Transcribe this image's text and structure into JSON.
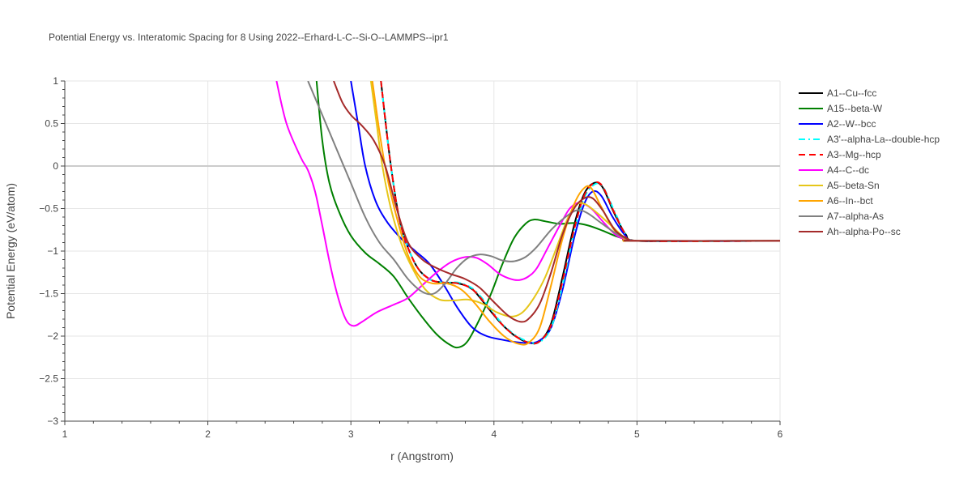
{
  "chart_data": {
    "type": "line",
    "title": "Potential Energy vs. Interatomic Spacing for 8 Using 2022--Erhard-L-C--Si-O--LAMMPS--ipr1",
    "xlabel": "r (Angstrom)",
    "ylabel": "Potential Energy (eV/atom)",
    "xlim": [
      1,
      6
    ],
    "ylim": [
      -3,
      1
    ],
    "x_ticks": [
      1,
      2,
      3,
      4,
      5,
      6
    ],
    "x_tick_labels": [
      "1",
      "2",
      "3",
      "4",
      "5",
      "6"
    ],
    "y_ticks": [
      1,
      0.5,
      0,
      -0.5,
      -1,
      -1.5,
      -2,
      -2.5,
      -3
    ],
    "y_tick_labels": [
      "1",
      "0.5",
      "0",
      "−0.5",
      "−1",
      "−1.5",
      "−2",
      "−2.5",
      "−3"
    ],
    "grid": true,
    "legend_position": "right",
    "series": [
      {
        "name": "A1--Cu--fcc",
        "color": "#000000",
        "dash": "solid",
        "points": [
          [
            3.21,
            1.0
          ],
          [
            3.28,
            0.0
          ],
          [
            3.35,
            -0.7
          ],
          [
            3.45,
            -1.15
          ],
          [
            3.55,
            -1.33
          ],
          [
            3.65,
            -1.37
          ],
          [
            3.75,
            -1.38
          ],
          [
            3.85,
            -1.45
          ],
          [
            3.95,
            -1.65
          ],
          [
            4.05,
            -1.85
          ],
          [
            4.15,
            -2.0
          ],
          [
            4.25,
            -2.08
          ],
          [
            4.32,
            -2.06
          ],
          [
            4.4,
            -1.85
          ],
          [
            4.48,
            -1.3
          ],
          [
            4.56,
            -0.7
          ],
          [
            4.63,
            -0.33
          ],
          [
            4.7,
            -0.2
          ],
          [
            4.76,
            -0.25
          ],
          [
            4.84,
            -0.55
          ],
          [
            4.92,
            -0.8
          ],
          [
            5.0,
            -0.88
          ],
          [
            5.5,
            -0.88
          ],
          [
            6.0,
            -0.88
          ]
        ]
      },
      {
        "name": "A15--beta-W",
        "color": "#008000",
        "dash": "solid",
        "points": [
          [
            2.76,
            1.0
          ],
          [
            2.8,
            0.3
          ],
          [
            2.85,
            -0.2
          ],
          [
            2.92,
            -0.55
          ],
          [
            3.0,
            -0.82
          ],
          [
            3.1,
            -1.02
          ],
          [
            3.2,
            -1.15
          ],
          [
            3.3,
            -1.3
          ],
          [
            3.4,
            -1.55
          ],
          [
            3.5,
            -1.78
          ],
          [
            3.6,
            -1.98
          ],
          [
            3.7,
            -2.11
          ],
          [
            3.76,
            -2.13
          ],
          [
            3.82,
            -2.05
          ],
          [
            3.9,
            -1.8
          ],
          [
            3.98,
            -1.5
          ],
          [
            4.06,
            -1.15
          ],
          [
            4.14,
            -0.85
          ],
          [
            4.22,
            -0.68
          ],
          [
            4.28,
            -0.63
          ],
          [
            4.36,
            -0.65
          ],
          [
            4.46,
            -0.68
          ],
          [
            4.56,
            -0.67
          ],
          [
            4.66,
            -0.7
          ],
          [
            4.76,
            -0.76
          ],
          [
            4.86,
            -0.83
          ],
          [
            4.95,
            -0.87
          ],
          [
            5.0,
            -0.88
          ],
          [
            6.0,
            -0.88
          ]
        ]
      },
      {
        "name": "A2--W--bcc",
        "color": "#0000ff",
        "dash": "solid",
        "points": [
          [
            3.0,
            1.0
          ],
          [
            3.05,
            0.5
          ],
          [
            3.1,
            0.0
          ],
          [
            3.17,
            -0.4
          ],
          [
            3.25,
            -0.65
          ],
          [
            3.35,
            -0.85
          ],
          [
            3.45,
            -1.0
          ],
          [
            3.55,
            -1.15
          ],
          [
            3.65,
            -1.4
          ],
          [
            3.75,
            -1.68
          ],
          [
            3.85,
            -1.9
          ],
          [
            3.95,
            -2.0
          ],
          [
            4.05,
            -2.04
          ],
          [
            4.15,
            -2.07
          ],
          [
            4.25,
            -2.08
          ],
          [
            4.32,
            -2.05
          ],
          [
            4.4,
            -1.9
          ],
          [
            4.48,
            -1.45
          ],
          [
            4.56,
            -0.85
          ],
          [
            4.63,
            -0.45
          ],
          [
            4.69,
            -0.3
          ],
          [
            4.75,
            -0.35
          ],
          [
            4.83,
            -0.6
          ],
          [
            4.92,
            -0.82
          ],
          [
            5.0,
            -0.88
          ],
          [
            6.0,
            -0.88
          ]
        ]
      },
      {
        "name": "A3'--alpha-La--double-hcp",
        "color": "#00ffff",
        "dash": "dashdot",
        "points": [
          [
            3.21,
            1.0
          ],
          [
            3.28,
            0.0
          ],
          [
            3.35,
            -0.7
          ],
          [
            3.45,
            -1.15
          ],
          [
            3.55,
            -1.33
          ],
          [
            3.65,
            -1.37
          ],
          [
            3.75,
            -1.37
          ],
          [
            3.85,
            -1.44
          ],
          [
            3.95,
            -1.62
          ],
          [
            4.05,
            -1.84
          ],
          [
            4.15,
            -1.99
          ],
          [
            4.25,
            -2.07
          ],
          [
            4.32,
            -2.07
          ],
          [
            4.4,
            -1.9
          ],
          [
            4.48,
            -1.4
          ],
          [
            4.56,
            -0.78
          ],
          [
            4.63,
            -0.38
          ],
          [
            4.7,
            -0.22
          ],
          [
            4.76,
            -0.24
          ],
          [
            4.84,
            -0.52
          ],
          [
            4.92,
            -0.8
          ],
          [
            5.0,
            -0.88
          ],
          [
            6.0,
            -0.88
          ]
        ]
      },
      {
        "name": "A3--Mg--hcp",
        "color": "#ff0000",
        "dash": "dash",
        "points": [
          [
            3.21,
            1.0
          ],
          [
            3.28,
            0.0
          ],
          [
            3.35,
            -0.7
          ],
          [
            3.45,
            -1.15
          ],
          [
            3.55,
            -1.33
          ],
          [
            3.65,
            -1.37
          ],
          [
            3.75,
            -1.38
          ],
          [
            3.85,
            -1.45
          ],
          [
            3.95,
            -1.64
          ],
          [
            4.05,
            -1.85
          ],
          [
            4.15,
            -2.0
          ],
          [
            4.25,
            -2.08
          ],
          [
            4.32,
            -2.06
          ],
          [
            4.4,
            -1.87
          ],
          [
            4.48,
            -1.35
          ],
          [
            4.56,
            -0.75
          ],
          [
            4.63,
            -0.35
          ],
          [
            4.7,
            -0.2
          ],
          [
            4.76,
            -0.24
          ],
          [
            4.84,
            -0.54
          ],
          [
            4.92,
            -0.8
          ],
          [
            5.0,
            -0.88
          ],
          [
            6.0,
            -0.88
          ]
        ]
      },
      {
        "name": "A4--C--dc",
        "color": "#ff00ff",
        "dash": "solid",
        "points": [
          [
            2.48,
            1.0
          ],
          [
            2.55,
            0.5
          ],
          [
            2.65,
            0.1
          ],
          [
            2.7,
            -0.05
          ],
          [
            2.75,
            -0.3
          ],
          [
            2.8,
            -0.7
          ],
          [
            2.86,
            -1.2
          ],
          [
            2.92,
            -1.6
          ],
          [
            2.97,
            -1.82
          ],
          [
            3.02,
            -1.88
          ],
          [
            3.08,
            -1.83
          ],
          [
            3.18,
            -1.72
          ],
          [
            3.3,
            -1.63
          ],
          [
            3.4,
            -1.55
          ],
          [
            3.5,
            -1.4
          ],
          [
            3.6,
            -1.25
          ],
          [
            3.7,
            -1.13
          ],
          [
            3.8,
            -1.07
          ],
          [
            3.88,
            -1.08
          ],
          [
            3.96,
            -1.16
          ],
          [
            4.04,
            -1.27
          ],
          [
            4.12,
            -1.33
          ],
          [
            4.18,
            -1.34
          ],
          [
            4.24,
            -1.3
          ],
          [
            4.3,
            -1.2
          ],
          [
            4.38,
            -0.95
          ],
          [
            4.46,
            -0.7
          ],
          [
            4.53,
            -0.5
          ],
          [
            4.6,
            -0.43
          ],
          [
            4.68,
            -0.5
          ],
          [
            4.76,
            -0.65
          ],
          [
            4.86,
            -0.82
          ],
          [
            4.95,
            -0.87
          ],
          [
            5.0,
            -0.88
          ],
          [
            6.0,
            -0.88
          ]
        ]
      },
      {
        "name": "A5--beta-Sn",
        "color": "#e6c619",
        "dash": "solid",
        "points": [
          [
            3.14,
            1.0
          ],
          [
            3.18,
            0.5
          ],
          [
            3.22,
            0.0
          ],
          [
            3.28,
            -0.5
          ],
          [
            3.35,
            -0.9
          ],
          [
            3.43,
            -1.2
          ],
          [
            3.52,
            -1.45
          ],
          [
            3.62,
            -1.57
          ],
          [
            3.72,
            -1.58
          ],
          [
            3.82,
            -1.57
          ],
          [
            3.92,
            -1.62
          ],
          [
            4.02,
            -1.72
          ],
          [
            4.12,
            -1.77
          ],
          [
            4.2,
            -1.72
          ],
          [
            4.28,
            -1.55
          ],
          [
            4.36,
            -1.3
          ],
          [
            4.44,
            -0.95
          ],
          [
            4.52,
            -0.6
          ],
          [
            4.58,
            -0.45
          ],
          [
            4.64,
            -0.45
          ],
          [
            4.72,
            -0.55
          ],
          [
            4.82,
            -0.7
          ],
          [
            4.92,
            -0.85
          ],
          [
            5.0,
            -0.88
          ],
          [
            6.0,
            -0.88
          ]
        ]
      },
      {
        "name": "A6--In--bct",
        "color": "#ffa500",
        "dash": "solid",
        "points": [
          [
            3.15,
            1.0
          ],
          [
            3.2,
            0.4
          ],
          [
            3.25,
            -0.1
          ],
          [
            3.32,
            -0.6
          ],
          [
            3.4,
            -1.05
          ],
          [
            3.48,
            -1.3
          ],
          [
            3.57,
            -1.38
          ],
          [
            3.67,
            -1.38
          ],
          [
            3.77,
            -1.45
          ],
          [
            3.87,
            -1.62
          ],
          [
            3.97,
            -1.83
          ],
          [
            4.07,
            -2.0
          ],
          [
            4.17,
            -2.09
          ],
          [
            4.24,
            -2.08
          ],
          [
            4.32,
            -1.9
          ],
          [
            4.4,
            -1.4
          ],
          [
            4.48,
            -0.85
          ],
          [
            4.56,
            -0.45
          ],
          [
            4.63,
            -0.26
          ],
          [
            4.68,
            -0.26
          ],
          [
            4.75,
            -0.48
          ],
          [
            4.84,
            -0.75
          ],
          [
            4.93,
            -0.87
          ],
          [
            5.0,
            -0.88
          ],
          [
            6.0,
            -0.88
          ]
        ]
      },
      {
        "name": "A7--alpha-As",
        "color": "#808080",
        "dash": "solid",
        "points": [
          [
            2.7,
            1.0
          ],
          [
            2.8,
            0.6
          ],
          [
            2.9,
            0.2
          ],
          [
            3.0,
            -0.2
          ],
          [
            3.1,
            -0.6
          ],
          [
            3.2,
            -0.9
          ],
          [
            3.3,
            -1.1
          ],
          [
            3.4,
            -1.33
          ],
          [
            3.5,
            -1.48
          ],
          [
            3.58,
            -1.5
          ],
          [
            3.66,
            -1.38
          ],
          [
            3.74,
            -1.2
          ],
          [
            3.82,
            -1.08
          ],
          [
            3.9,
            -1.04
          ],
          [
            3.98,
            -1.06
          ],
          [
            4.06,
            -1.11
          ],
          [
            4.14,
            -1.12
          ],
          [
            4.22,
            -1.07
          ],
          [
            4.3,
            -0.95
          ],
          [
            4.4,
            -0.75
          ],
          [
            4.5,
            -0.6
          ],
          [
            4.58,
            -0.52
          ],
          [
            4.65,
            -0.55
          ],
          [
            4.75,
            -0.67
          ],
          [
            4.86,
            -0.8
          ],
          [
            4.95,
            -0.87
          ],
          [
            5.0,
            -0.88
          ],
          [
            6.0,
            -0.88
          ]
        ]
      },
      {
        "name": "Ah--alpha-Po--sc",
        "color": "#a52a2a",
        "dash": "solid",
        "points": [
          [
            2.88,
            1.0
          ],
          [
            2.94,
            0.75
          ],
          [
            3.0,
            0.6
          ],
          [
            3.08,
            0.47
          ],
          [
            3.16,
            0.3
          ],
          [
            3.24,
            0.0
          ],
          [
            3.32,
            -0.5
          ],
          [
            3.4,
            -0.9
          ],
          [
            3.5,
            -1.1
          ],
          [
            3.6,
            -1.2
          ],
          [
            3.7,
            -1.27
          ],
          [
            3.8,
            -1.33
          ],
          [
            3.9,
            -1.43
          ],
          [
            4.0,
            -1.6
          ],
          [
            4.1,
            -1.76
          ],
          [
            4.18,
            -1.83
          ],
          [
            4.24,
            -1.8
          ],
          [
            4.32,
            -1.62
          ],
          [
            4.4,
            -1.25
          ],
          [
            4.48,
            -0.8
          ],
          [
            4.56,
            -0.5
          ],
          [
            4.63,
            -0.38
          ],
          [
            4.69,
            -0.38
          ],
          [
            4.76,
            -0.52
          ],
          [
            4.85,
            -0.76
          ],
          [
            4.94,
            -0.86
          ],
          [
            5.0,
            -0.88
          ],
          [
            6.0,
            -0.88
          ]
        ]
      }
    ]
  }
}
